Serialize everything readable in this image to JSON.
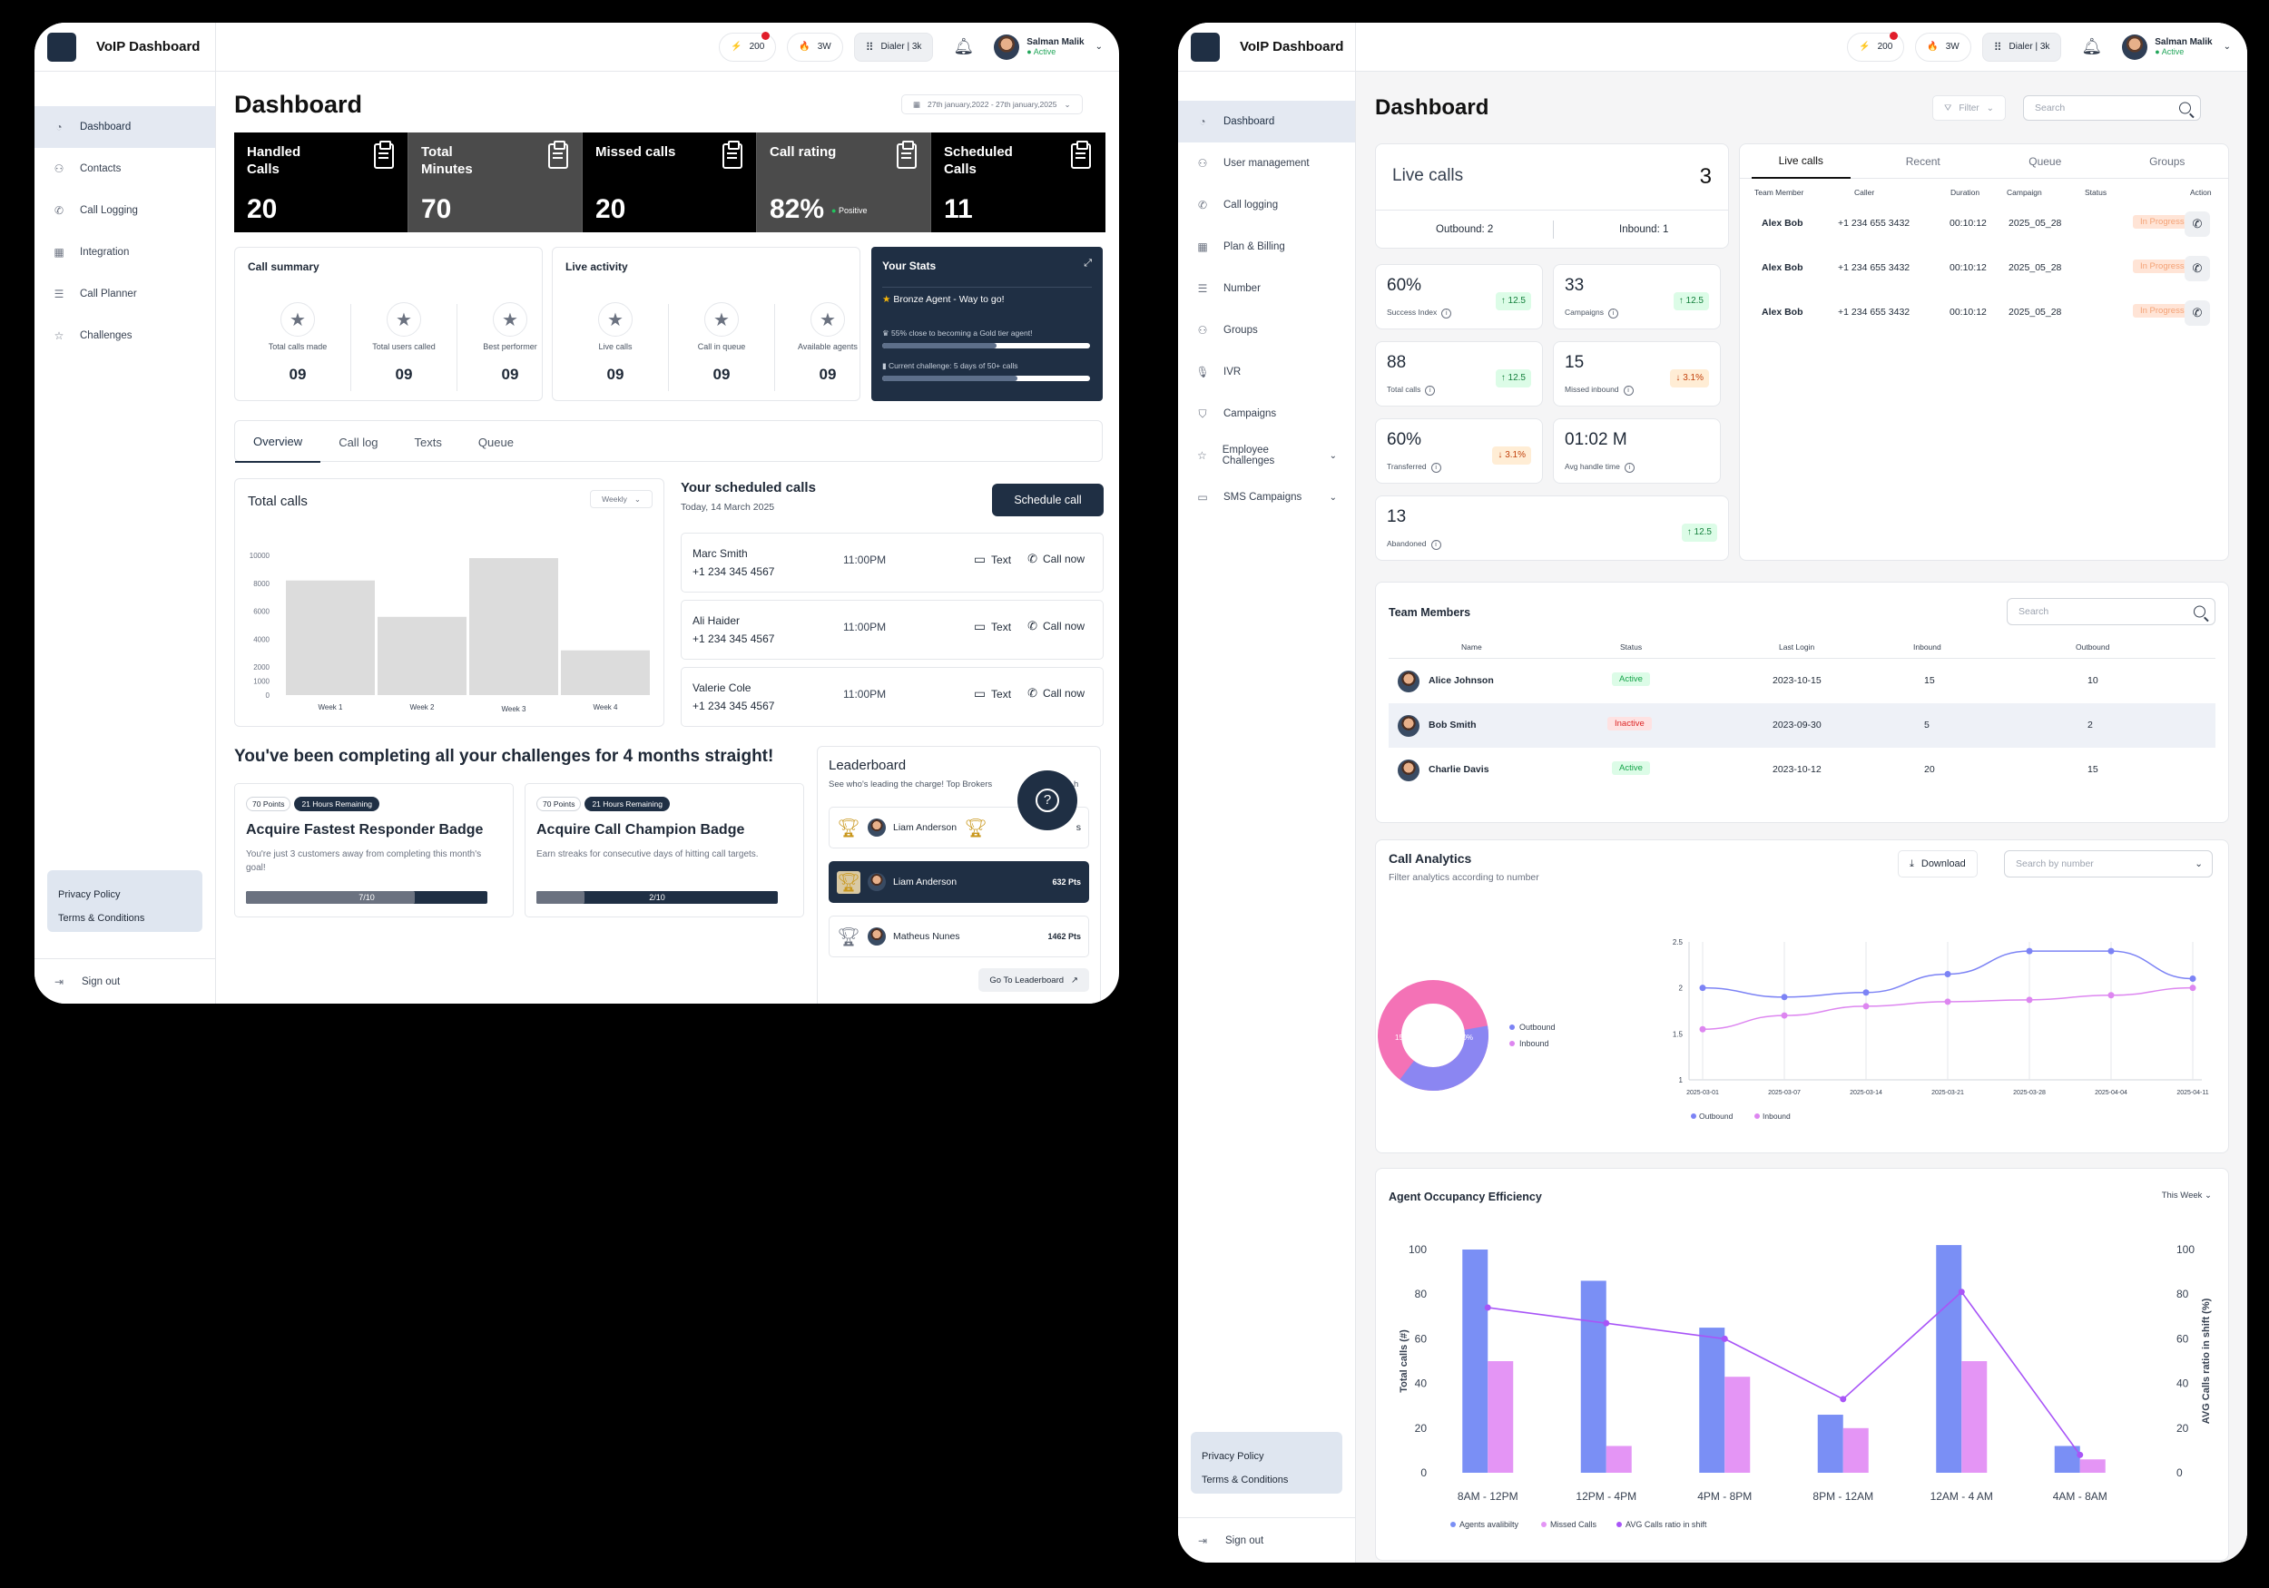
{
  "w1": {
    "app_title": "VoIP Dashboard",
    "nav": [
      {
        "label": "Dashboard",
        "icon": "pie-chart-icon",
        "active": true
      },
      {
        "label": "Contacts",
        "icon": "users-icon"
      },
      {
        "label": "Call Logging",
        "icon": "phone-icon"
      },
      {
        "label": "Integration",
        "icon": "grid-icon"
      },
      {
        "label": "Call Planner",
        "icon": "list-icon"
      },
      {
        "label": "Challenges",
        "icon": "star-icon"
      }
    ],
    "legal": {
      "privacy": "Privacy Policy",
      "terms": "Terms & Conditions"
    },
    "signout": "Sign out",
    "topbar": {
      "points": "200",
      "streak": "3W",
      "dialer": "Dialer | 3k",
      "user_name": "Salman Malik",
      "user_status": "Active"
    },
    "page_title": "Dashboard",
    "date_range": "27th january,2022 - 27th january,2025",
    "stats": [
      {
        "label": "Handled Calls",
        "value": "20",
        "bg": "#000000"
      },
      {
        "label": "Total Minutes",
        "value": "70",
        "bg": "#4b4b4b"
      },
      {
        "label": "Missed calls",
        "value": "20",
        "bg": "#000000"
      },
      {
        "label": "Call rating",
        "value": "82%",
        "bg": "#4b4b4b",
        "badge": "Positive"
      },
      {
        "label": "Scheduled Calls",
        "value": "11",
        "bg": "#000000"
      }
    ],
    "call_summary": {
      "title": "Call summary",
      "items": [
        {
          "label": "Total calls made",
          "value": "09"
        },
        {
          "label": "Total users called",
          "value": "09"
        },
        {
          "label": "Best performer",
          "value": "09"
        }
      ]
    },
    "live_activity": {
      "title": "Live activity",
      "items": [
        {
          "label": "Live calls",
          "value": "09"
        },
        {
          "label": "Call in queue",
          "value": "09"
        },
        {
          "label": "Available agents",
          "value": "09"
        }
      ]
    },
    "your_stats": {
      "title": "Your Stats",
      "rank": "Bronze Agent - Way to go!",
      "progress1_text": "55% close to becoming a Gold tier agent!",
      "progress1": 0.55,
      "progress2_text": "Current challenge: 5 days of 50+ calls",
      "progress2": 0.65
    },
    "tabs": [
      "Overview",
      "Call log",
      "Texts",
      "Queue"
    ],
    "total_calls": {
      "title": "Total calls",
      "period": "Weekly"
    },
    "scheduled": {
      "title": "Your scheduled calls",
      "date": "Today, 14 March 2025",
      "button": "Schedule call",
      "text_label": "Text",
      "call_label": "Call now",
      "items": [
        {
          "name": "Marc Smith",
          "phone": "+1 234 345 4567",
          "time": "11:00PM"
        },
        {
          "name": "Ali Haider",
          "phone": "+1 234 345 4567",
          "time": "11:00PM"
        },
        {
          "name": "Valerie Cole",
          "phone": "+1 234 345 4567",
          "time": "11:00PM"
        }
      ]
    },
    "streak_heading": "You've been completing all your challenges for 4 months straight!",
    "challenges": [
      {
        "points": "70 Points",
        "remaining": "21 Hours Remaining",
        "title": "Acquire Fastest Responder Badge",
        "desc": "You're just 3 customers away from completing this month's goal!",
        "progress": "7/10",
        "fraction": 0.7
      },
      {
        "points": "70 Points",
        "remaining": "21 Hours Remaining",
        "title": "Acquire Call Champion Badge",
        "desc": "Earn streaks for consecutive days of hitting call targets.",
        "progress": "2/10",
        "fraction": 0.2
      }
    ],
    "leaderboard": {
      "title": "Leaderboard",
      "subtitle": "See who's leading the charge! Top Brokers",
      "subtitle_end": "h",
      "button": "Go To Leaderboard",
      "rows": [
        {
          "name": "Liam Anderson",
          "pts": "",
          "tail": "s"
        },
        {
          "name": "Liam Anderson",
          "pts": "632 Pts"
        },
        {
          "name": "Matheus Nunes",
          "pts": "1462 Pts"
        }
      ]
    }
  },
  "w2": {
    "app_title": "VoIP Dashboard",
    "nav": [
      {
        "label": "Dashboard",
        "icon": "pie-chart-icon",
        "active": true
      },
      {
        "label": "User management",
        "icon": "users-icon"
      },
      {
        "label": "Call logging",
        "icon": "phone-icon"
      },
      {
        "label": "Plan & Billing",
        "icon": "grid-icon"
      },
      {
        "label": "Number",
        "icon": "list-icon"
      },
      {
        "label": "Groups",
        "icon": "group-icon"
      },
      {
        "label": "IVR",
        "icon": "mic-icon"
      },
      {
        "label": "Campaigns",
        "icon": "megaphone-icon"
      },
      {
        "label": "Employee Challenges",
        "icon": "star-icon",
        "chevron": true
      },
      {
        "label": "SMS Campaigns",
        "icon": "message-icon",
        "chevron": true
      }
    ],
    "legal": {
      "privacy": "Privacy Policy",
      "terms": "Terms & Conditions"
    },
    "signout": "Sign out",
    "topbar": {
      "points": "200",
      "streak": "3W",
      "dialer": "Dialer | 3k",
      "user_name": "Salman Malik",
      "user_status": "Active"
    },
    "page_title": "Dashboard",
    "filter": "Filter",
    "search": "Search",
    "live_calls": {
      "title": "Live calls",
      "count": "3",
      "outbound": "Outbound: 2",
      "inbound": "Inbound: 1"
    },
    "metrics": [
      {
        "value": "60%",
        "label": "Success Index",
        "delta": "12.5",
        "dir": "up"
      },
      {
        "value": "33",
        "label": "Campaigns",
        "delta": "12.5",
        "dir": "up"
      },
      {
        "value": "88",
        "label": "Total calls",
        "delta": "12.5",
        "dir": "up"
      },
      {
        "value": "15",
        "label": "Missed inbound",
        "delta": "3.1%",
        "dir": "down"
      },
      {
        "value": "60%",
        "label": "Transferred",
        "delta": "3.1%",
        "dir": "down"
      },
      {
        "value": "01:02 M",
        "label": "Avg handle time",
        "delta": "",
        "dir": ""
      },
      {
        "value": "13",
        "label": "Abandoned",
        "delta": "12.5",
        "dir": "up"
      }
    ],
    "calls_tabs": [
      "Live calls",
      "Recent",
      "Queue",
      "Groups"
    ],
    "calls_table": {
      "headers": [
        "Team Member",
        "Caller",
        "Duration",
        "Campaign",
        "Status",
        "Action"
      ],
      "rows": [
        {
          "member": "Alex Bob",
          "caller": "+1 234 655 3432",
          "duration": "00:10:12",
          "campaign": "2025_05_28",
          "status": "In Progress"
        },
        {
          "member": "Alex Bob",
          "caller": "+1 234 655 3432",
          "duration": "00:10:12",
          "campaign": "2025_05_28",
          "status": "In Progress"
        },
        {
          "member": "Alex Bob",
          "caller": "+1 234 655 3432",
          "duration": "00:10:12",
          "campaign": "2025_05_28",
          "status": "In Progress"
        }
      ]
    },
    "team": {
      "title": "Team Members",
      "search": "Search",
      "headers": [
        "Name",
        "Status",
        "Last Login",
        "Inbound",
        "Outbound"
      ],
      "rows": [
        {
          "name": "Alice Johnson",
          "status": "Active",
          "last": "2023-10-15",
          "in": "15",
          "out": "10"
        },
        {
          "name": "Bob Smith",
          "status": "Inactive",
          "last": "2023-09-30",
          "in": "5",
          "out": "2"
        },
        {
          "name": "Charlie Davis",
          "status": "Active",
          "last": "2023-10-12",
          "in": "20",
          "out": "15"
        }
      ]
    },
    "analytics": {
      "title": "Call Analytics",
      "subtitle": "Filter analytics according to number",
      "download": "Download",
      "search_number": "Search by number",
      "donut_legend": [
        "Outbound",
        "Inbound"
      ],
      "donut_labels": [
        "15%",
        "50%"
      ],
      "donut_outbound_fraction": 0.38
    },
    "occupancy": {
      "title": "Agent Occupancy Efficiency",
      "period": "This Week"
    }
  },
  "chart_data": [
    {
      "type": "bar",
      "title": "Total calls",
      "categories": [
        "Week 1",
        "Week 2",
        "Week 3",
        "Week 4"
      ],
      "values": [
        8200,
        5600,
        9800,
        3200
      ],
      "ylim": [
        0,
        10000
      ],
      "yticks": [
        "10000",
        "8000",
        "6000",
        "4000",
        "2000",
        "1000",
        "0"
      ]
    },
    {
      "type": "line",
      "categories": [
        "2025-03-01",
        "2025-03-07",
        "2025-03-14",
        "2025-03-21",
        "2025-03-28",
        "2025-04-04",
        "2025-04-11"
      ],
      "ylim": [
        1,
        2.5
      ],
      "yticks": [
        "2.5",
        "2",
        "1.5",
        "1"
      ],
      "series": [
        {
          "name": "Outbound",
          "values": [
            2.0,
            1.9,
            1.95,
            2.15,
            2.4,
            2.4,
            2.1
          ],
          "color": "#7c83f5"
        },
        {
          "name": "Inbound",
          "values": [
            1.55,
            1.7,
            1.8,
            1.85,
            1.87,
            1.92,
            2.0
          ],
          "color": "#dd86f0"
        }
      ]
    },
    {
      "type": "bar",
      "categories": [
        "8AM - 12PM",
        "12PM - 4PM",
        "4PM - 8PM",
        "8PM - 12AM",
        "12AM - 4 AM",
        "4AM - 8AM"
      ],
      "ylabel": "Total calls (#)",
      "y2label": "AVG Calls ratio in shift (%)",
      "ylim": [
        0,
        100
      ],
      "yticks": [
        "100",
        "80",
        "60",
        "40",
        "20",
        "0"
      ],
      "series": [
        {
          "name": "Agents avalibilty",
          "type": "bar",
          "values": [
            100,
            86,
            65,
            26,
            102,
            12
          ],
          "color": "#7a8ff5"
        },
        {
          "name": "Missed Calls",
          "type": "bar",
          "values": [
            50,
            12,
            43,
            20,
            50,
            6
          ],
          "color": "#e495f5"
        },
        {
          "name": "AVG Calls ratio in shift",
          "type": "line",
          "values": [
            74,
            67,
            60,
            33,
            81,
            8
          ],
          "color": "#a855f7"
        }
      ]
    }
  ]
}
